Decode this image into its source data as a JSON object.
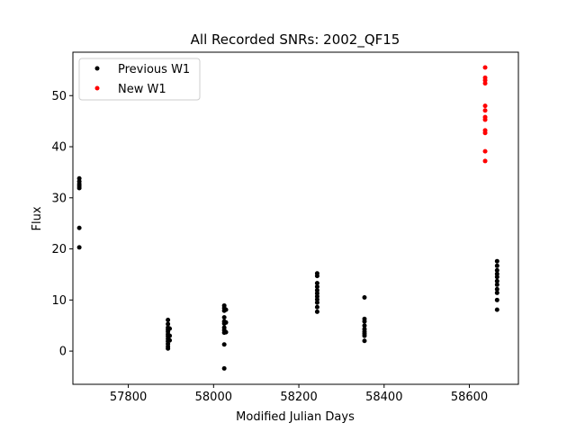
{
  "chart_data": {
    "type": "scatter",
    "title": "All Recorded SNRs: 2002_QF15",
    "xlabel": "Modified Julian Days",
    "ylabel": "Flux",
    "xlim": [
      57670,
      58715
    ],
    "ylim": [
      -6.5,
      58.5
    ],
    "xticks": [
      57800,
      58000,
      58200,
      58400,
      58600
    ],
    "yticks": [
      0,
      10,
      20,
      30,
      40,
      50
    ],
    "grid": false,
    "legend_position": "top-left",
    "series": [
      {
        "name": "Previous W1",
        "color": "#000000",
        "points": [
          [
            57685,
            33.8
          ],
          [
            57685,
            33.2
          ],
          [
            57685,
            32.7
          ],
          [
            57685,
            32.3
          ],
          [
            57685,
            31.9
          ],
          [
            57685,
            24.1
          ],
          [
            57685,
            20.3
          ],
          [
            57893,
            6.1
          ],
          [
            57893,
            5.3
          ],
          [
            57893,
            4.6
          ],
          [
            57893,
            4.2
          ],
          [
            57893,
            3.8
          ],
          [
            57893,
            3.3
          ],
          [
            57893,
            2.9
          ],
          [
            57893,
            2.4
          ],
          [
            57893,
            1.9
          ],
          [
            57893,
            1.4
          ],
          [
            57893,
            0.9
          ],
          [
            57893,
            0.5
          ],
          [
            57897,
            4.4
          ],
          [
            57897,
            3.0
          ],
          [
            57897,
            2.1
          ],
          [
            58025,
            8.9
          ],
          [
            58025,
            8.4
          ],
          [
            58025,
            7.9
          ],
          [
            58025,
            6.6
          ],
          [
            58025,
            5.8
          ],
          [
            58025,
            5.4
          ],
          [
            58025,
            4.6
          ],
          [
            58025,
            4.1
          ],
          [
            58025,
            3.6
          ],
          [
            58025,
            1.3
          ],
          [
            58025,
            -3.4
          ],
          [
            58029,
            8.1
          ],
          [
            58029,
            5.6
          ],
          [
            58029,
            3.7
          ],
          [
            58243,
            15.2
          ],
          [
            58243,
            14.7
          ],
          [
            58243,
            13.3
          ],
          [
            58243,
            12.6
          ],
          [
            58243,
            11.9
          ],
          [
            58243,
            11.3
          ],
          [
            58243,
            10.7
          ],
          [
            58243,
            10.1
          ],
          [
            58243,
            9.5
          ],
          [
            58243,
            8.6
          ],
          [
            58243,
            7.7
          ],
          [
            58354,
            10.5
          ],
          [
            58354,
            6.3
          ],
          [
            58354,
            5.8
          ],
          [
            58354,
            5.0
          ],
          [
            58354,
            4.3
          ],
          [
            58354,
            3.8
          ],
          [
            58354,
            3.4
          ],
          [
            58354,
            3.0
          ],
          [
            58354,
            2.0
          ],
          [
            58665,
            17.6
          ],
          [
            58665,
            16.7
          ],
          [
            58665,
            15.8
          ],
          [
            58665,
            15.1
          ],
          [
            58665,
            14.5
          ],
          [
            58665,
            13.7
          ],
          [
            58665,
            13.0
          ],
          [
            58665,
            12.1
          ],
          [
            58665,
            11.4
          ],
          [
            58665,
            10.0
          ],
          [
            58665,
            8.1
          ]
        ]
      },
      {
        "name": "New W1",
        "color": "#ff0000",
        "points": [
          [
            58637,
            55.5
          ],
          [
            58637,
            53.5
          ],
          [
            58637,
            53.0
          ],
          [
            58637,
            52.4
          ],
          [
            58637,
            48.0
          ],
          [
            58637,
            47.1
          ],
          [
            58637,
            45.8
          ],
          [
            58637,
            45.3
          ],
          [
            58637,
            43.2
          ],
          [
            58637,
            42.7
          ],
          [
            58637,
            39.1
          ],
          [
            58637,
            37.2
          ]
        ]
      }
    ]
  }
}
